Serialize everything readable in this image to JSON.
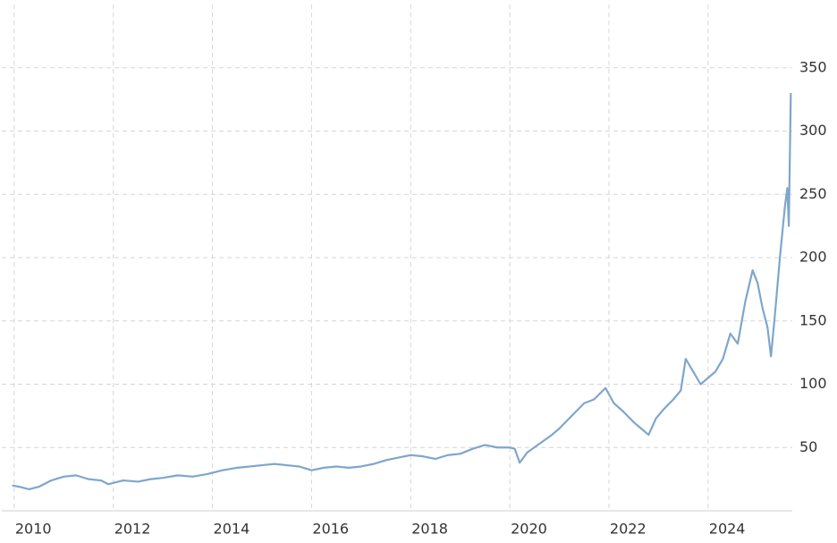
{
  "chart_data": {
    "type": "line",
    "x": [
      2009.96,
      2010.1,
      2010.3,
      2010.5,
      2010.75,
      2011.0,
      2011.25,
      2011.5,
      2011.75,
      2011.9,
      2012.2,
      2012.5,
      2012.75,
      2013.0,
      2013.3,
      2013.6,
      2013.9,
      2014.2,
      2014.5,
      2014.75,
      2015.0,
      2015.25,
      2015.5,
      2015.75,
      2016.0,
      2016.25,
      2016.5,
      2016.75,
      2017.0,
      2017.25,
      2017.5,
      2017.75,
      2018.0,
      2018.25,
      2018.5,
      2018.75,
      2019.0,
      2019.25,
      2019.5,
      2019.75,
      2020.0,
      2020.1,
      2020.2,
      2020.35,
      2020.6,
      2020.85,
      2021.0,
      2021.25,
      2021.5,
      2021.7,
      2021.93,
      2022.1,
      2022.3,
      2022.5,
      2022.65,
      2022.8,
      2022.95,
      2023.1,
      2023.3,
      2023.45,
      2023.55,
      2023.7,
      2023.85,
      2024.0,
      2024.15,
      2024.3,
      2024.45,
      2024.6,
      2024.75,
      2024.9,
      2025.0,
      2025.1,
      2025.2,
      2025.27,
      2025.35,
      2025.45,
      2025.55,
      2025.6,
      2025.63,
      2025.67
    ],
    "series": [
      {
        "color": "#7fa6cc",
        "values": [
          20,
          19,
          17,
          19,
          24,
          27,
          28,
          25,
          24,
          21,
          24,
          23,
          25,
          26,
          28,
          27,
          29,
          32,
          34,
          35,
          36,
          37,
          36,
          35,
          32,
          34,
          35,
          34,
          35,
          37,
          40,
          42,
          44,
          43,
          41,
          44,
          45,
          49,
          52,
          50,
          50,
          49,
          38,
          46,
          53,
          60,
          65,
          75,
          85,
          88,
          97,
          85,
          78,
          70,
          65,
          60,
          73,
          80,
          88,
          95,
          120,
          110,
          100,
          105,
          110,
          120,
          140,
          132,
          165,
          190,
          180,
          160,
          145,
          122,
          155,
          200,
          240,
          255,
          225,
          330
        ]
      }
    ],
    "xlim": [
      2009.75,
      2025.7
    ],
    "xticks": [
      2010,
      2012,
      2014,
      2016,
      2018,
      2020,
      2022,
      2024
    ],
    "ylim": [
      0,
      400
    ],
    "yticks": [
      50,
      100,
      150,
      200,
      250,
      300,
      350
    ],
    "grid": true
  }
}
